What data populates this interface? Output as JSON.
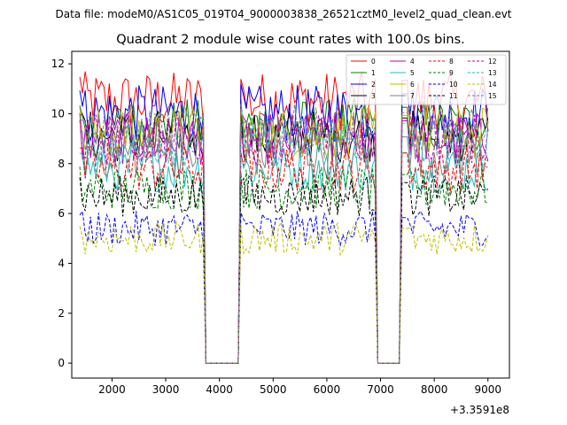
{
  "chart_data": {
    "type": "line",
    "suptitle": "Data file: modeM0/AS1C05_019T04_9000003838_26521cztM0_level2_quad_clean.evt",
    "title": "Quadrant 2 module wise count rates with 100.0s bins.",
    "xlabel": "",
    "ylabel": "",
    "x_offset_label": "+3.3591e8",
    "xlim": [
      1250,
      9400
    ],
    "ylim": [
      -0.6,
      12.5
    ],
    "x_ticks": [
      2000,
      3000,
      4000,
      5000,
      6000,
      7000,
      8000,
      9000
    ],
    "x_tick_labels": [
      "2000",
      "3000",
      "4000",
      "5000",
      "6000",
      "7000",
      "8000",
      "9000"
    ],
    "y_ticks": [
      0,
      2,
      4,
      6,
      8,
      10,
      12
    ],
    "y_tick_labels": [
      "0",
      "2",
      "4",
      "6",
      "8",
      "10",
      "12"
    ],
    "grid": false,
    "legend_position": "top-right",
    "legend_columns": 4,
    "segments": [
      {
        "start": 1400,
        "end": 3700
      },
      {
        "start": 4400,
        "end": 6900
      },
      {
        "start": 7400,
        "end": 9000
      }
    ],
    "gap_value": 0,
    "series": [
      {
        "name": "0",
        "color": "#ff0000",
        "dash": "solid",
        "level": 10.5
      },
      {
        "name": "1",
        "color": "#008000",
        "dash": "solid",
        "level": 9.5
      },
      {
        "name": "2",
        "color": "#0000ff",
        "dash": "solid",
        "level": 10.0
      },
      {
        "name": "3",
        "color": "#000000",
        "dash": "solid",
        "level": 9.1
      },
      {
        "name": "4",
        "color": "#bf00bf",
        "dash": "solid",
        "level": 9.0
      },
      {
        "name": "5",
        "color": "#1fbfbf",
        "dash": "solid",
        "level": 7.8
      },
      {
        "name": "6",
        "color": "#bfbf00",
        "dash": "solid",
        "level": 9.2
      },
      {
        "name": "7",
        "color": "#808080",
        "dash": "solid",
        "level": 8.4
      },
      {
        "name": "8",
        "color": "#ff0000",
        "dash": "dashed",
        "level": 7.8
      },
      {
        "name": "9",
        "color": "#008000",
        "dash": "dashed",
        "level": 7.0
      },
      {
        "name": "10",
        "color": "#0000ff",
        "dash": "dashed",
        "level": 5.4
      },
      {
        "name": "11",
        "color": "#000000",
        "dash": "dashed",
        "level": 6.7
      },
      {
        "name": "12",
        "color": "#bf00bf",
        "dash": "dashed",
        "level": 9.0
      },
      {
        "name": "13",
        "color": "#1fbfbf",
        "dash": "dashed",
        "level": 8.9
      },
      {
        "name": "14",
        "color": "#bfbf00",
        "dash": "dashed",
        "level": 5.0
      },
      {
        "name": "15",
        "color": "#808080",
        "dash": "dashed",
        "level": 9.3
      }
    ]
  }
}
